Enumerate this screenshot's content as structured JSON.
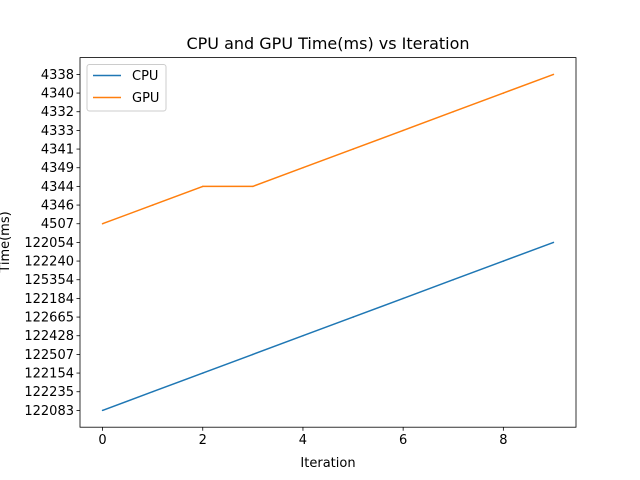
{
  "chart_data": {
    "type": "line",
    "title": "CPU and GPU Time(ms) vs Iteration",
    "xlabel": "Iteration",
    "ylabel": "Time(ms)",
    "x_ticks": [
      0,
      2,
      4,
      6,
      8
    ],
    "xlim": [
      -0.45,
      9.45
    ],
    "y_categories": [
      "122083",
      "122235",
      "122154",
      "122507",
      "122428",
      "122665",
      "122184",
      "125354",
      "122240",
      "122054",
      "4507",
      "4346",
      "4344",
      "4349",
      "4341",
      "4333",
      "4332",
      "4340",
      "4338"
    ],
    "legend": {
      "position": "upper left"
    },
    "grid": false,
    "series": [
      {
        "name": "CPU",
        "color": "#1f77b4",
        "x": [
          0,
          1,
          2,
          3,
          4,
          5,
          6,
          7,
          8,
          9
        ],
        "y": [
          "122083",
          "122235",
          "122154",
          "122507",
          "122428",
          "122665",
          "122184",
          "125354",
          "122240",
          "122054"
        ]
      },
      {
        "name": "GPU",
        "color": "#ff7f0e",
        "x": [
          0,
          1,
          2,
          3,
          4,
          5,
          6,
          7,
          8,
          9
        ],
        "y": [
          "4507",
          "4346",
          "4344",
          "4344",
          "4349",
          "4341",
          "4333",
          "4332",
          "4340",
          "4338"
        ]
      }
    ]
  }
}
